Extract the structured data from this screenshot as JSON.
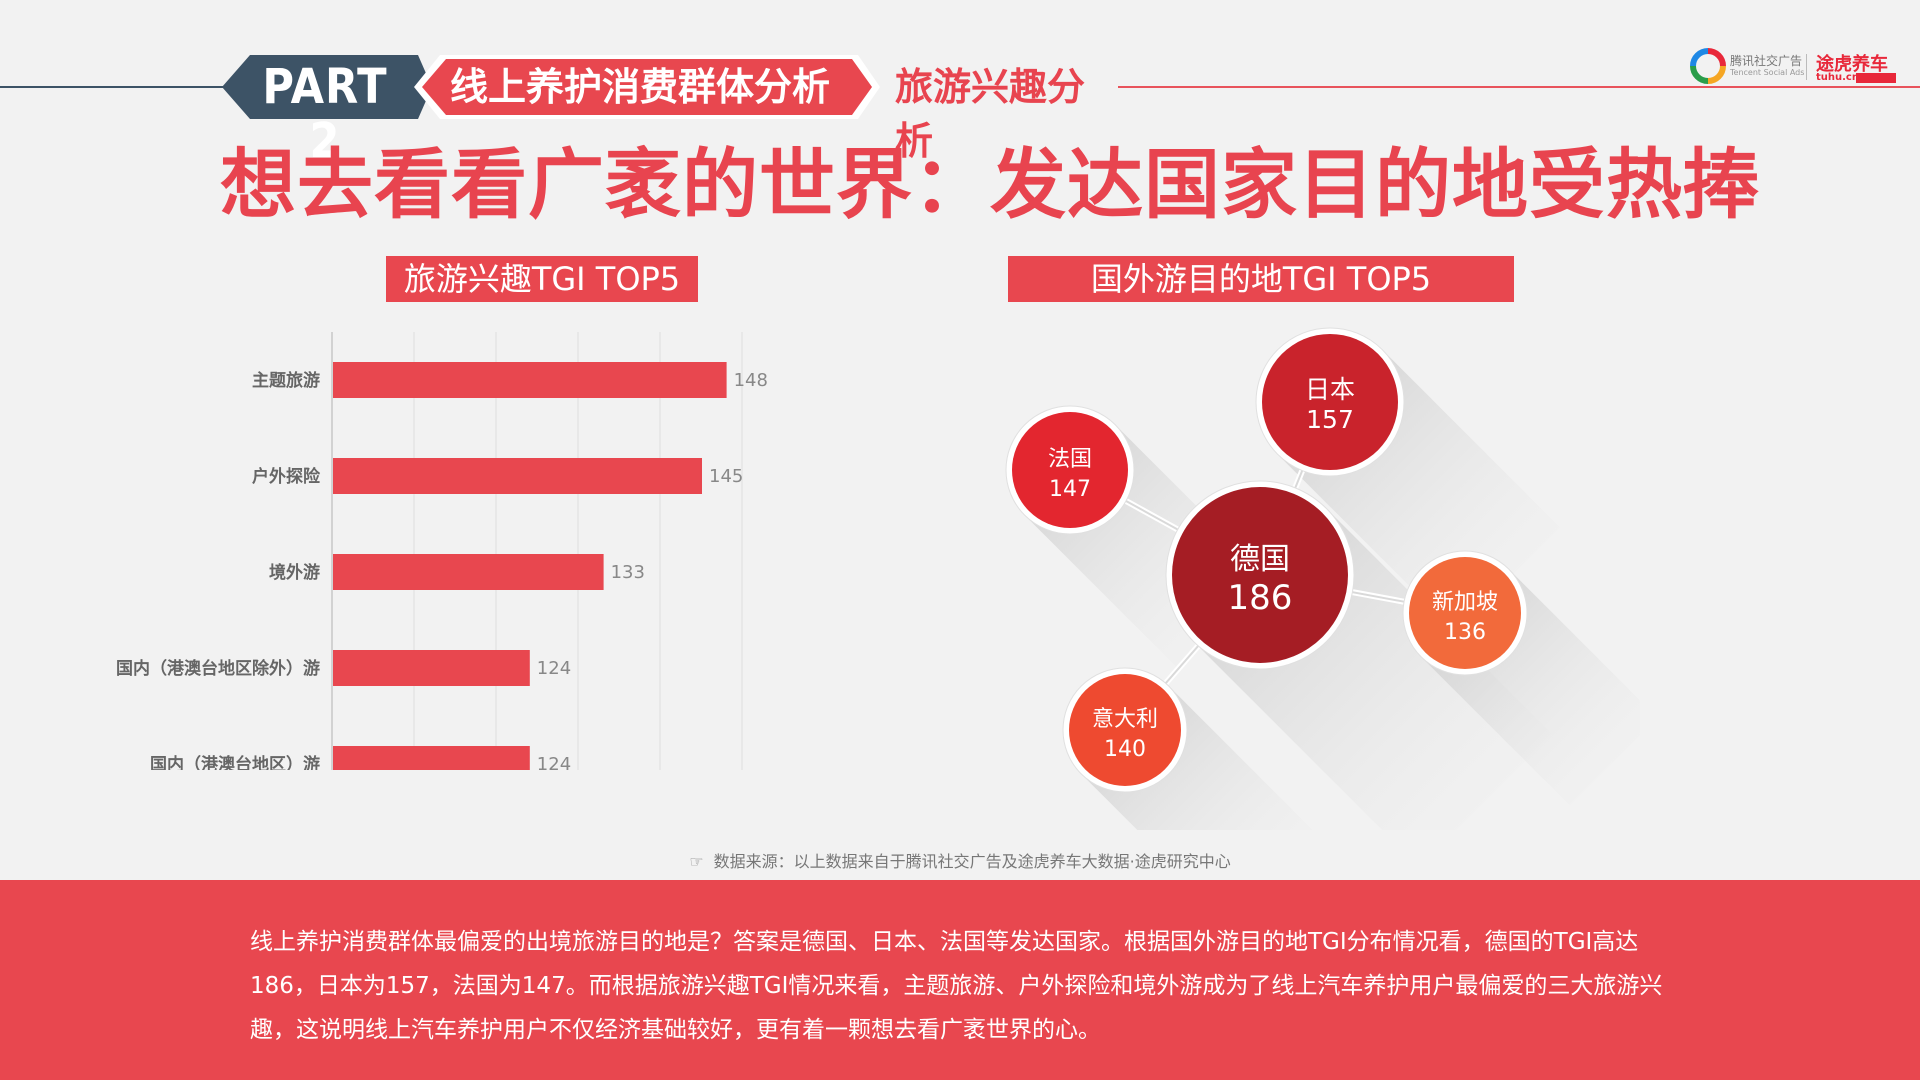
{
  "header": {
    "part_label": "PART 2",
    "section_title": "线上养护消费群体分析",
    "subsection_title": "旅游兴趣分析",
    "tencent_name": "腾讯社交广告",
    "tencent_sub": "Tencent Social Ads",
    "tuhu_name": "途虎养车",
    "tuhu_url": "tuhu.cn",
    "colors": {
      "navy": "#3d5366",
      "red": "#e8474f"
    }
  },
  "main_title": "想去看看广袤的世界：发达国家目的地受热捧",
  "left_chart_title": "旅游兴趣TGI TOP5",
  "right_chart_title": "国外游目的地TGI TOP5",
  "chart_data": [
    {
      "type": "bar",
      "orientation": "horizontal",
      "categories": [
        "主题旅游",
        "户外探险",
        "境外游",
        "国内（港澳台地区除外）游",
        "国内（港澳台地区）游"
      ],
      "values": [
        148,
        145,
        133,
        124,
        124
      ],
      "xlim": [
        100,
        150
      ],
      "grid": true,
      "color": "#e8474f"
    },
    {
      "type": "bubble",
      "points": [
        {
          "label": "德国",
          "value": 186,
          "color": "#a51d24"
        },
        {
          "label": "日本",
          "value": 157,
          "color": "#c9232c"
        },
        {
          "label": "法国",
          "value": 147,
          "color": "#e3262f"
        },
        {
          "label": "意大利",
          "value": 140,
          "color": "#ee4a30"
        },
        {
          "label": "新加坡",
          "value": 136,
          "color": "#f26a3b"
        }
      ]
    }
  ],
  "source_note": "数据来源：以上数据来自于腾讯社交广告及途虎养车大数据·途虎研究中心",
  "summary": "线上养护消费群体最偏爱的出境旅游目的地是？答案是德国、日本、法国等发达国家。根据国外游目的地TGI分布情况看，德国的TGI高达186，日本为157，法国为147。而根据旅游兴趣TGI情况来看，主题旅游、户外探险和境外游成为了线上汽车养护用户最偏爱的三大旅游兴趣，这说明线上汽车养护用户不仅经济基础较好，更有着一颗想去看广袤世界的心。"
}
